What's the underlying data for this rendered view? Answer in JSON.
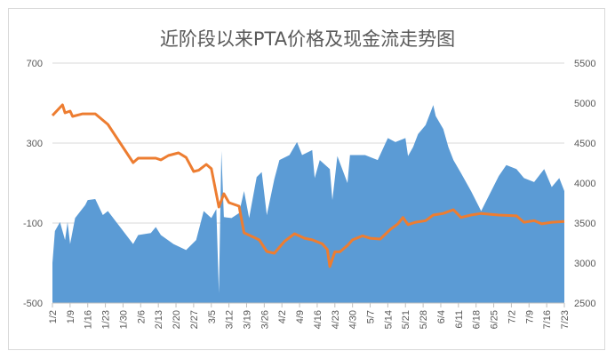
{
  "chart_data": {
    "type": "area+line",
    "title": "近阶段以来PTA价格及现金流走势图",
    "x_unit": "days since 1/2",
    "x_tick_labels": [
      "1/2",
      "1/9",
      "1/16",
      "1/23",
      "1/30",
      "2/6",
      "2/13",
      "2/20",
      "2/27",
      "3/5",
      "3/12",
      "3/19",
      "3/26",
      "4/2",
      "4/9",
      "4/16",
      "4/23",
      "4/30",
      "5/7",
      "5/14",
      "5/21",
      "5/28",
      "6/4",
      "6/11",
      "6/18",
      "6/25",
      "7/2",
      "7/9",
      "7/16",
      "7/23"
    ],
    "y_left": {
      "ylim": [
        -500,
        700
      ],
      "ticks": [
        "700",
        "300",
        "-100",
        "-500"
      ]
    },
    "y_right": {
      "ylim": [
        2500,
        5500
      ],
      "ticks": [
        "5500",
        "5000",
        "4500",
        "4000",
        "3500",
        "3000",
        "2500"
      ]
    },
    "gridlines": true,
    "series": [
      {
        "name": "现金流",
        "type": "area",
        "axis": "left",
        "color": "#5b9bd5",
        "points": [
          [
            0,
            -300
          ],
          [
            1,
            -140
          ],
          [
            3,
            -95
          ],
          [
            5,
            -185
          ],
          [
            6,
            -95
          ],
          [
            7,
            -205
          ],
          [
            9,
            -75
          ],
          [
            13,
            -10
          ],
          [
            14,
            15
          ],
          [
            17,
            20
          ],
          [
            20,
            -60
          ],
          [
            22,
            -40
          ],
          [
            32,
            -205
          ],
          [
            34,
            -160
          ],
          [
            39,
            -150
          ],
          [
            41,
            -120
          ],
          [
            43,
            -160
          ],
          [
            48,
            -205
          ],
          [
            53,
            -235
          ],
          [
            57,
            -185
          ],
          [
            60,
            -40
          ],
          [
            63,
            -75
          ],
          [
            65,
            -30
          ],
          [
            66,
            -450
          ],
          [
            67,
            260
          ],
          [
            68,
            -70
          ],
          [
            71,
            -75
          ],
          [
            74,
            -50
          ],
          [
            76,
            60
          ],
          [
            78,
            -75
          ],
          [
            81,
            130
          ],
          [
            83,
            155
          ],
          [
            85,
            -60
          ],
          [
            88,
            120
          ],
          [
            90,
            215
          ],
          [
            94,
            240
          ],
          [
            97,
            305
          ],
          [
            99,
            240
          ],
          [
            103,
            265
          ],
          [
            104,
            125
          ],
          [
            106,
            215
          ],
          [
            110,
            170
          ],
          [
            111,
            15
          ],
          [
            113,
            235
          ],
          [
            117,
            100
          ],
          [
            118,
            240
          ],
          [
            124,
            240
          ],
          [
            129,
            215
          ],
          [
            133,
            325
          ],
          [
            136,
            305
          ],
          [
            140,
            325
          ],
          [
            141,
            235
          ],
          [
            143,
            280
          ],
          [
            145,
            345
          ],
          [
            148,
            390
          ],
          [
            151,
            490
          ],
          [
            152,
            435
          ],
          [
            155,
            370
          ],
          [
            157,
            280
          ],
          [
            159,
            215
          ],
          [
            162,
            150
          ],
          [
            166,
            60
          ],
          [
            170,
            -40
          ],
          [
            177,
            135
          ],
          [
            180,
            190
          ],
          [
            184,
            170
          ],
          [
            187,
            125
          ],
          [
            191,
            105
          ],
          [
            195,
            170
          ],
          [
            198,
            80
          ],
          [
            201,
            125
          ],
          [
            203,
            60
          ]
        ]
      },
      {
        "name": "PTA价格",
        "type": "line",
        "axis": "right",
        "color": "#ed7d31",
        "points": [
          [
            0,
            4845
          ],
          [
            4,
            4978
          ],
          [
            5,
            4878
          ],
          [
            7,
            4900
          ],
          [
            8,
            4833
          ],
          [
            12,
            4866
          ],
          [
            17,
            4866
          ],
          [
            22,
            4733
          ],
          [
            32,
            4256
          ],
          [
            34,
            4311
          ],
          [
            41,
            4311
          ],
          [
            43,
            4290
          ],
          [
            46,
            4344
          ],
          [
            50,
            4378
          ],
          [
            53,
            4320
          ],
          [
            56,
            4144
          ],
          [
            58,
            4160
          ],
          [
            61,
            4233
          ],
          [
            63,
            4180
          ],
          [
            66,
            3700
          ],
          [
            68,
            3867
          ],
          [
            70,
            3756
          ],
          [
            74,
            3711
          ],
          [
            76,
            3378
          ],
          [
            80,
            3320
          ],
          [
            82,
            3289
          ],
          [
            85,
            3144
          ],
          [
            88,
            3122
          ],
          [
            92,
            3270
          ],
          [
            96,
            3367
          ],
          [
            100,
            3310
          ],
          [
            103,
            3290
          ],
          [
            107,
            3240
          ],
          [
            109,
            3170
          ],
          [
            110,
            2956
          ],
          [
            112,
            3140
          ],
          [
            114,
            3140
          ],
          [
            117,
            3220
          ],
          [
            119,
            3290
          ],
          [
            123,
            3340
          ],
          [
            126,
            3310
          ],
          [
            130,
            3300
          ],
          [
            134,
            3420
          ],
          [
            137,
            3490
          ],
          [
            139,
            3570
          ],
          [
            141,
            3480
          ],
          [
            144,
            3510
          ],
          [
            148,
            3530
          ],
          [
            151,
            3600
          ],
          [
            155,
            3620
          ],
          [
            159,
            3667
          ],
          [
            162,
            3570
          ],
          [
            166,
            3600
          ],
          [
            170,
            3620
          ],
          [
            177,
            3600
          ],
          [
            184,
            3590
          ],
          [
            187,
            3510
          ],
          [
            191,
            3530
          ],
          [
            194,
            3490
          ],
          [
            198,
            3510
          ],
          [
            203,
            3520
          ]
        ]
      }
    ]
  }
}
